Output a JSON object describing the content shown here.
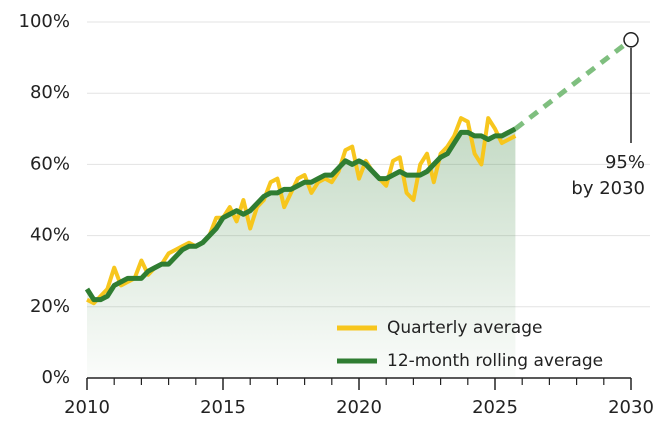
{
  "chart_data": {
    "type": "line",
    "x": [
      2010,
      2010.25,
      2010.5,
      2010.75,
      2011,
      2011.25,
      2011.5,
      2011.75,
      2012,
      2012.25,
      2012.5,
      2012.75,
      2013,
      2013.25,
      2013.5,
      2013.75,
      2014,
      2014.25,
      2014.5,
      2014.75,
      2015,
      2015.25,
      2015.5,
      2015.75,
      2016,
      2016.25,
      2016.5,
      2016.75,
      2017,
      2017.25,
      2017.5,
      2017.75,
      2018,
      2018.25,
      2018.5,
      2018.75,
      2019,
      2019.25,
      2019.5,
      2019.75,
      2020,
      2020.25,
      2020.5,
      2020.75,
      2021,
      2021.25,
      2021.5,
      2021.75,
      2022,
      2022.25,
      2022.5,
      2022.75,
      2023,
      2023.25,
      2023.5,
      2023.75,
      2024,
      2024.25,
      2024.5,
      2024.75,
      2025,
      2025.25,
      2025.5,
      2025.75
    ],
    "series": [
      {
        "name": "Quarterly average",
        "color": "#f7c61d",
        "values": [
          22,
          21,
          23,
          25,
          31,
          26,
          27,
          28,
          33,
          29,
          31,
          32,
          35,
          36,
          37,
          38,
          37,
          38,
          40,
          45,
          45,
          48,
          44,
          50,
          42,
          48,
          50,
          55,
          56,
          48,
          52,
          56,
          57,
          52,
          55,
          56,
          55,
          58,
          64,
          65,
          56,
          61,
          58,
          56,
          54,
          61,
          62,
          52,
          50,
          60,
          63,
          55,
          63,
          65,
          68,
          73,
          72,
          63,
          60,
          73,
          70,
          66,
          67,
          68
        ]
      },
      {
        "name": "12-month rolling average",
        "color": "#2f7d32",
        "values": [
          25,
          22,
          22,
          23,
          26,
          27,
          28,
          28,
          28,
          30,
          31,
          32,
          32,
          34,
          36,
          37,
          37,
          38,
          40,
          42,
          45,
          46,
          47,
          46,
          47,
          49,
          51,
          52,
          52,
          53,
          53,
          54,
          55,
          55,
          56,
          57,
          57,
          59,
          61,
          60,
          61,
          60,
          58,
          56,
          56,
          57,
          58,
          57,
          57,
          57,
          58,
          60,
          62,
          63,
          66,
          69,
          69,
          68,
          68,
          67,
          68,
          68,
          69,
          70
        ]
      }
    ],
    "projection": {
      "x": [
        2025.75,
        2030
      ],
      "values": [
        70,
        95
      ],
      "color": "#7fbf7f"
    },
    "annotation": [
      "95%",
      "by 2030"
    ],
    "xlim": [
      2010,
      2030
    ],
    "xticks": [
      2010,
      2015,
      2020,
      2025,
      2030
    ],
    "xminorticks": [
      2011,
      2012,
      2013,
      2014,
      2016,
      2017,
      2018,
      2019,
      2021,
      2022,
      2023,
      2024,
      2026,
      2027,
      2028,
      2029
    ],
    "ylim": [
      0,
      100
    ],
    "yticks": [
      {
        "value": 0,
        "label": "0%"
      },
      {
        "value": 20,
        "label": "20%"
      },
      {
        "value": 40,
        "label": "40%"
      },
      {
        "value": 60,
        "label": "60%"
      },
      {
        "value": 80,
        "label": "80%"
      },
      {
        "value": 100,
        "label": "100%"
      }
    ],
    "grid": true,
    "legend": "lower right"
  }
}
